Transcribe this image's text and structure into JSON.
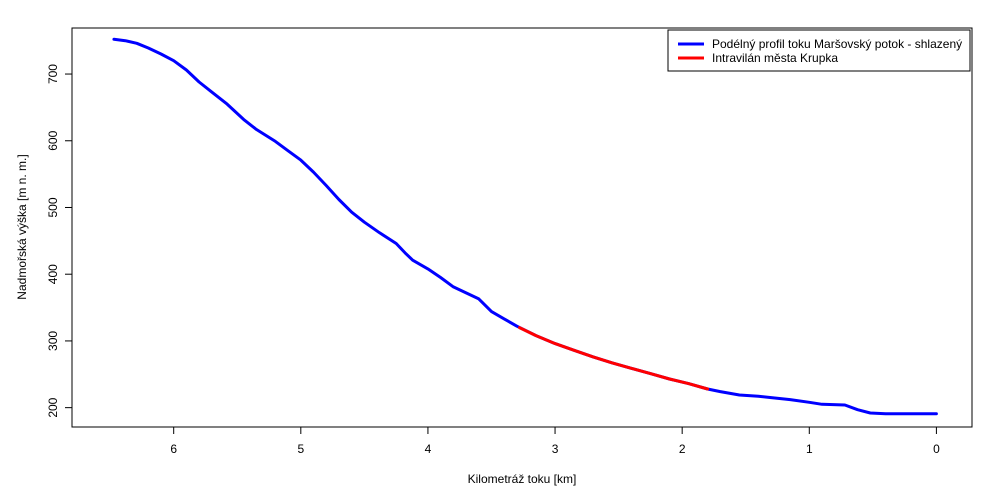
{
  "chart_data": {
    "type": "line",
    "title": "",
    "xlabel": "Kilometráž toku [km]",
    "ylabel": "Nadmořská výška [m n. m.]",
    "x_reversed": true,
    "xlim": [
      6.8,
      -0.28
    ],
    "ylim": [
      171,
      769
    ],
    "xticks": [
      6,
      5,
      4,
      3,
      2,
      1,
      0
    ],
    "yticks": [
      200,
      300,
      400,
      500,
      600,
      700
    ],
    "legend_position": "top-right",
    "series": [
      {
        "name": "Podélný profil toku Maršovský potok - shlazený",
        "color": "#0000ff",
        "points": [
          [
            6.47,
            752
          ],
          [
            6.38,
            750
          ],
          [
            6.29,
            746
          ],
          [
            6.2,
            739
          ],
          [
            6.1,
            730
          ],
          [
            6.0,
            720
          ],
          [
            5.9,
            706
          ],
          [
            5.8,
            688
          ],
          [
            5.7,
            673
          ],
          [
            5.58,
            655
          ],
          [
            5.45,
            632
          ],
          [
            5.35,
            617
          ],
          [
            5.2,
            599
          ],
          [
            5.1,
            585
          ],
          [
            5.0,
            571
          ],
          [
            4.9,
            553
          ],
          [
            4.8,
            533
          ],
          [
            4.7,
            512
          ],
          [
            4.6,
            493
          ],
          [
            4.5,
            478
          ],
          [
            4.38,
            462
          ],
          [
            4.25,
            446
          ],
          [
            4.18,
            432
          ],
          [
            4.12,
            421
          ],
          [
            4.0,
            408
          ],
          [
            3.9,
            395
          ],
          [
            3.8,
            381
          ],
          [
            3.7,
            372
          ],
          [
            3.6,
            363
          ],
          [
            3.5,
            344
          ],
          [
            3.4,
            333
          ],
          [
            3.3,
            322
          ],
          [
            3.15,
            308
          ],
          [
            3.0,
            296
          ],
          [
            2.85,
            286
          ],
          [
            2.7,
            276
          ],
          [
            2.55,
            267
          ],
          [
            2.4,
            259
          ],
          [
            2.25,
            251
          ],
          [
            2.1,
            243
          ],
          [
            1.95,
            236
          ],
          [
            1.8,
            228
          ],
          [
            1.7,
            224
          ],
          [
            1.55,
            219
          ],
          [
            1.4,
            217
          ],
          [
            1.3,
            215
          ],
          [
            1.15,
            212
          ],
          [
            1.0,
            208
          ],
          [
            0.9,
            205
          ],
          [
            0.72,
            204
          ],
          [
            0.62,
            197
          ],
          [
            0.52,
            192
          ],
          [
            0.4,
            191
          ],
          [
            0.2,
            191
          ],
          [
            0.0,
            191
          ]
        ]
      },
      {
        "name": "Intravilán města Krupka",
        "color": "#ff0000",
        "points": [
          [
            3.28,
            320
          ],
          [
            3.15,
            308
          ],
          [
            3.0,
            296
          ],
          [
            2.85,
            286
          ],
          [
            2.7,
            276
          ],
          [
            2.55,
            267
          ],
          [
            2.4,
            259
          ],
          [
            2.25,
            251
          ],
          [
            2.1,
            243
          ],
          [
            1.95,
            236
          ],
          [
            1.8,
            228
          ]
        ]
      }
    ]
  }
}
